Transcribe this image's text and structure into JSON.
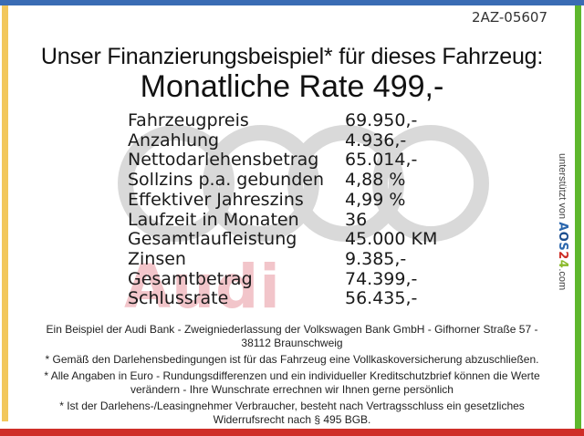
{
  "page": {
    "doc_id": "2AZ-05607",
    "title_line1": "Unser Finanzierungsbeispiel* für dieses Fahrzeug:",
    "title_line2": "Monatliche Rate 499,-"
  },
  "table": {
    "rows": [
      {
        "label": "Fahrzeugpreis",
        "value": "69.950,-"
      },
      {
        "label": "Anzahlung",
        "value": "4.936,-"
      },
      {
        "label": "Nettodarlehensbetrag",
        "value": "65.014,-"
      },
      {
        "label": "Sollzins p.a. gebunden",
        "value": "4,88 %"
      },
      {
        "label": "Effektiver Jahreszins",
        "value": "4,99 %"
      },
      {
        "label": "Laufzeit in Monaten",
        "value": "36"
      },
      {
        "label": "Gesamtlaufleistung",
        "value": "45.000 KM"
      },
      {
        "label": "Zinsen",
        "value": "9.385,-"
      },
      {
        "label": "Gesamtbetrag",
        "value": "74.399,-"
      },
      {
        "label": "Schlussrate",
        "value": "56.435,-"
      }
    ]
  },
  "watermark": {
    "audi_text": "Audi",
    "ring_color": "#d9d9d9",
    "audi_color": "#f2c5ca"
  },
  "sidebar": {
    "supported_by": "unterstützt von",
    "brand_letters": [
      {
        "char": "A",
        "color": "#2a66ad"
      },
      {
        "char": "O",
        "color": "#1d4e8f"
      },
      {
        "char": "S",
        "color": "#2a66ad"
      },
      {
        "char": "2",
        "color": "#cc2a22"
      },
      {
        "char": "4",
        "color": "#8ab92a"
      }
    ],
    "brand_suffix": ".com"
  },
  "footer": {
    "paragraphs": [
      {
        "lines": [
          "Ein Beispiel der Audi Bank - Zweigniederlassung der Volkswagen Bank GmbH - Gifhorner Straße 57 -",
          "38112 Braunschweig"
        ]
      },
      {
        "lines": [
          "* Gemäß den Darlehensbedingungen ist für das Fahrzeug eine Vollkaskoversicherung abzuschließen."
        ]
      },
      {
        "lines": [
          "* Alle Angaben in Euro - Rundungsdifferenzen und ein individueller Kreditschutzbrief können die Werte",
          "verändern - Ihre Wunschrate errechnen wir Ihnen gerne persönlich"
        ]
      },
      {
        "lines": [
          "* Ist der Darlehens-/Leasingnehmer Verbraucher, besteht nach Vertragsschluss ein gesetzliches",
          "Widerrufsrecht nach § 495 BGB."
        ]
      }
    ]
  },
  "colors": {
    "border_top": "#3a6cb4",
    "border_left": "#f2c75c",
    "border_right": "#5eb72d",
    "border_bottom": "#cf2e28"
  }
}
